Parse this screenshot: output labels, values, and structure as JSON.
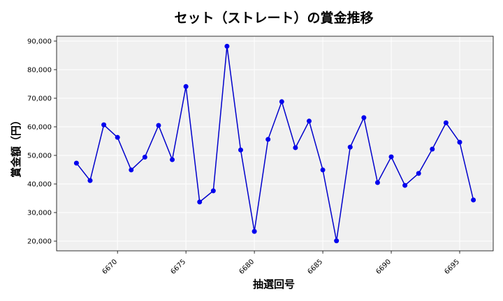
{
  "chart_data": {
    "type": "line",
    "title": "セット（ストレート）の賞金推移",
    "xlabel": "抽選回号",
    "ylabel": "賞金額（円）",
    "x": [
      6667,
      6668,
      6669,
      6670,
      6671,
      6672,
      6673,
      6674,
      6675,
      6676,
      6677,
      6678,
      6679,
      6680,
      6681,
      6682,
      6683,
      6684,
      6685,
      6686,
      6687,
      6688,
      6689,
      6690,
      6691,
      6692,
      6693,
      6694,
      6695,
      6696
    ],
    "series": [
      {
        "values": [
          47300,
          41200,
          60700,
          56300,
          44900,
          49400,
          60500,
          48500,
          74100,
          33700,
          37600,
          88200,
          51900,
          23400,
          55600,
          68800,
          52700,
          62000,
          44900,
          20100,
          52900,
          63200,
          40500,
          49500,
          39500,
          43700,
          52200,
          61400,
          54600,
          34400
        ]
      }
    ],
    "xticks": [
      "6670",
      "6675",
      "6680",
      "6685",
      "6690",
      "6695"
    ],
    "yticks": [
      "20,000",
      "30,000",
      "40,000",
      "50,000",
      "60,000",
      "70,000",
      "80,000",
      "90,000"
    ],
    "xlim": [
      6665.55,
      6697.45
    ],
    "ylim": [
      16600,
      91700
    ],
    "grid": true,
    "colors": {
      "line": "#0000cc",
      "marker": "#0000ee",
      "plot_bg": "#f0f0f0",
      "grid": "#ffffff"
    }
  }
}
